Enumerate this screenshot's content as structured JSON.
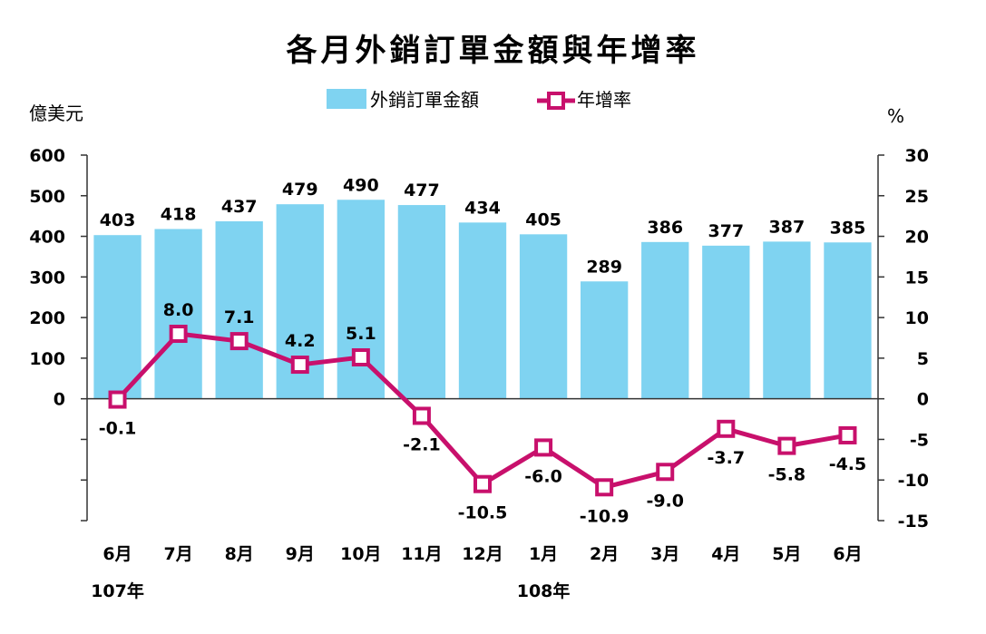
{
  "chart_data": {
    "type": "bar+line",
    "title": "各月外銷訂單金額與年增率",
    "left_unit": "億美元",
    "right_unit": "%",
    "categories": [
      "6月",
      "7月",
      "8月",
      "9月",
      "10月",
      "11月",
      "12月",
      "1月",
      "2月",
      "3月",
      "4月",
      "5月",
      "6月"
    ],
    "year_labels": [
      {
        "at_index": 0,
        "text": "107年"
      },
      {
        "at_index": 7,
        "text": "108年"
      }
    ],
    "series": [
      {
        "name": "外銷訂單金額",
        "kind": "bar",
        "axis": "left",
        "color": "#7fd3f1",
        "values": [
          403,
          418,
          437,
          479,
          490,
          477,
          434,
          405,
          289,
          386,
          377,
          387,
          385
        ]
      },
      {
        "name": "年增率",
        "kind": "line",
        "axis": "right",
        "color": "#c8106c",
        "values": [
          -0.1,
          8.0,
          7.1,
          4.2,
          5.1,
          -2.1,
          -10.5,
          -6.0,
          -10.9,
          -9.0,
          -3.7,
          -5.8,
          -4.5
        ]
      }
    ],
    "left_axis": {
      "ticks": [
        0,
        100,
        200,
        300,
        400,
        500,
        600
      ],
      "range": [
        -300,
        600
      ]
    },
    "right_axis": {
      "ticks": [
        -15,
        -10,
        -5,
        0,
        5,
        10,
        15,
        20,
        25,
        30
      ],
      "range": [
        -15,
        30
      ]
    },
    "legend": "top-center",
    "grid": false
  }
}
